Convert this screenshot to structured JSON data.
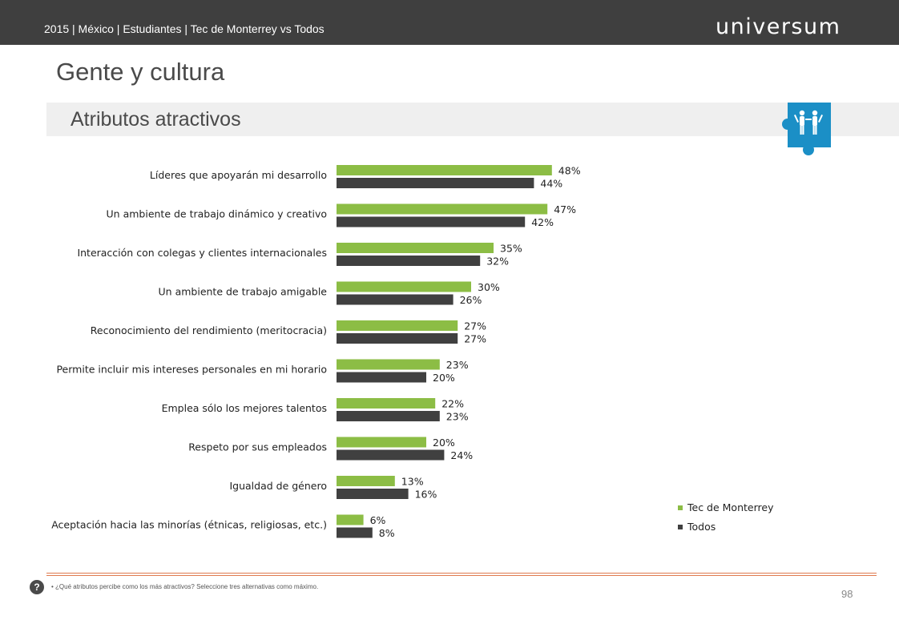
{
  "header": {
    "breadcrumb": "2015 | México | Estudiantes | Tec de Monterrey vs Todos",
    "logo": "universum"
  },
  "page": {
    "title": "Gente y cultura",
    "section": "Atributos atractivos",
    "icon": "people-puzzle-icon"
  },
  "colors": {
    "tec": "#8cbd45",
    "todos": "#404040",
    "accent_blue": "#1b8fc6",
    "rule": "#e07a4f"
  },
  "chart_data": {
    "type": "bar",
    "orientation": "horizontal",
    "categories": [
      "Líderes que apoyarán mi desarrollo",
      "Un ambiente de trabajo dinámico y creativo",
      "Interacción con colegas y clientes internacionales",
      "Un ambiente de trabajo amigable",
      "Reconocimiento del rendimiento (meritocracia)",
      "Permite incluir mis intereses personales en mi horario",
      "Emplea sólo los mejores talentos",
      "Respeto por sus empleados",
      "Igualdad de género",
      "Aceptación hacia las minorías (étnicas, religiosas, etc.)"
    ],
    "series": [
      {
        "name": "Tec de Monterrey",
        "color": "#8cbd45",
        "values": [
          48,
          47,
          35,
          30,
          27,
          23,
          22,
          20,
          13,
          6
        ],
        "labels": [
          "48%",
          "47%",
          "35%",
          "30%",
          "27%",
          "23%",
          "22%",
          "20%",
          "13%",
          "6%"
        ]
      },
      {
        "name": "Todos",
        "color": "#404040",
        "values": [
          44,
          42,
          32,
          26,
          27,
          20,
          23,
          24,
          16,
          8
        ],
        "labels": [
          "44%",
          "42%",
          "32%",
          "26%",
          "27%",
          "20%",
          "23%",
          "24%",
          "16%",
          "8%"
        ]
      }
    ],
    "legend_position": "bottom-right",
    "grid": false
  },
  "footer": {
    "badge": "?",
    "note": "•  ¿Qué atributos percibe como los más atractivos? Seleccione tres alternativas como máximo.",
    "page_number": "98"
  }
}
